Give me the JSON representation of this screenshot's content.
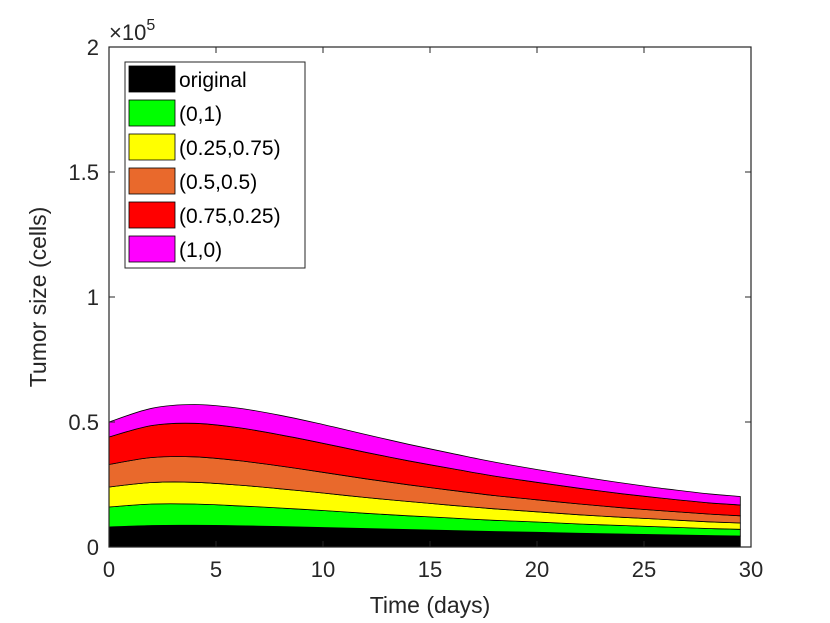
{
  "chart_data": {
    "type": "area",
    "stacked": true,
    "xlabel": "Time (days)",
    "ylabel": "Tumor size (cells)",
    "xlim": [
      0,
      30
    ],
    "ylim": [
      0,
      200000
    ],
    "x_ticks": [
      0,
      5,
      10,
      15,
      20,
      25,
      30
    ],
    "x_tick_labels": [
      "0",
      "5",
      "10",
      "15",
      "20",
      "25",
      "30"
    ],
    "y_ticks": [
      0,
      50000,
      100000,
      150000,
      200000
    ],
    "y_tick_labels": [
      "0",
      "0.5",
      "1",
      "1.5",
      "2"
    ],
    "y_exponent_label": "×10",
    "y_exponent_power": "5",
    "grid": false,
    "legend_position": "top-left",
    "x": [
      0,
      2,
      4,
      6,
      8,
      10,
      12,
      14,
      16,
      18,
      20,
      22,
      24,
      26,
      28,
      29.5
    ],
    "series": [
      {
        "name": "original",
        "color": "#000000",
        "values": [
          8000,
          8600,
          8700,
          8500,
          8200,
          7800,
          7400,
          7000,
          6600,
          6200,
          5900,
          5500,
          5200,
          4900,
          4600,
          4400
        ]
      },
      {
        "name": "(0,1)",
        "color": "#00ff00",
        "values": [
          8000,
          8600,
          8500,
          8000,
          7400,
          6800,
          6100,
          5500,
          5000,
          4500,
          4100,
          3700,
          3400,
          3100,
          2800,
          2700
        ]
      },
      {
        "name": "(0.25,0.75)",
        "color": "#ffff00",
        "values": [
          8000,
          8600,
          8700,
          8300,
          7700,
          7000,
          6300,
          5700,
          5100,
          4600,
          4100,
          3700,
          3300,
          3000,
          2700,
          2500
        ]
      },
      {
        "name": "(0.5,0.5)",
        "color": "#e9692c",
        "values": [
          9000,
          10000,
          10200,
          9800,
          9100,
          8300,
          7500,
          6700,
          6000,
          5300,
          4800,
          4300,
          3800,
          3400,
          3100,
          2900
        ]
      },
      {
        "name": "(0.75,0.25)",
        "color": "#ff0000",
        "values": [
          11000,
          12800,
          13400,
          13200,
          12500,
          11600,
          10600,
          9600,
          8700,
          7800,
          7000,
          6300,
          5600,
          5000,
          4500,
          4300
        ]
      },
      {
        "name": "(1,0)",
        "color": "#ff00ff",
        "values": [
          6000,
          6900,
          7500,
          7800,
          7800,
          7500,
          7100,
          6600,
          6100,
          5600,
          5100,
          4700,
          4300,
          3900,
          3600,
          3400
        ]
      }
    ]
  }
}
